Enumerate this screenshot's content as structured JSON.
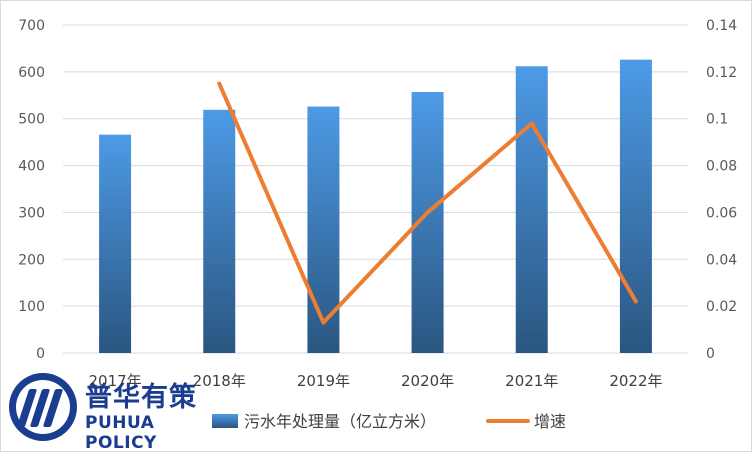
{
  "chart_data": {
    "type": "bar",
    "categories": [
      "2017年",
      "2018年",
      "2019年",
      "2020年",
      "2021年",
      "2022年"
    ],
    "series": [
      {
        "name": "污水年处理量（亿立方米）",
        "type": "bar",
        "axis": "left",
        "values": [
          466,
          519,
          526,
          557,
          612,
          626
        ],
        "color": "#3f7fbf"
      },
      {
        "name": "增速",
        "type": "line",
        "axis": "right",
        "values": [
          null,
          0.115,
          0.013,
          0.06,
          0.098,
          0.022
        ],
        "color": "#ed7d31"
      }
    ],
    "y_left": {
      "min": 0,
      "max": 700,
      "ticks": [
        "0",
        "100",
        "200",
        "300",
        "400",
        "500",
        "600",
        "700"
      ]
    },
    "y_right": {
      "min": 0,
      "max": 0.14,
      "ticks": [
        "0",
        "0.02",
        "0.04",
        "0.06",
        "0.08",
        "0.1",
        "0.12",
        "0.14"
      ]
    },
    "grid": true,
    "legend_position": "bottom"
  },
  "logo": {
    "name_cn": "普华有策",
    "name_en": "PUHUA POLICY"
  }
}
